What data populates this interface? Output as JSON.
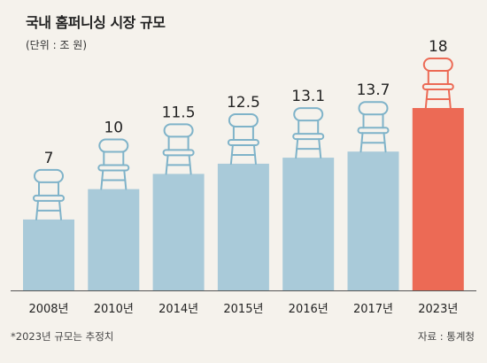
{
  "header": {
    "title": "국내 홈퍼니싱 시장 규모",
    "unit": "(단위 : 조 원)"
  },
  "footer": {
    "note": "*2023년 규모는 추정치",
    "source": "자료 : 통계청"
  },
  "colors": {
    "background": "#f5f2ec",
    "bar": "#a9cad9",
    "highlight_bar": "#ec6a55",
    "chair_outline": "#7fb3c9",
    "highlight_chair_outline": "#ec6a55",
    "axis": "#555555"
  },
  "chart_data": {
    "type": "bar",
    "title": "국내 홈퍼니싱 시장 규모",
    "ylabel": "",
    "xlabel": "",
    "unit": "조 원",
    "categories": [
      "2008년",
      "2010년",
      "2014년",
      "2015년",
      "2016년",
      "2017년",
      "2023년"
    ],
    "values": [
      7,
      10,
      11.5,
      12.5,
      13.1,
      13.7,
      18
    ],
    "value_labels": [
      "7",
      "10",
      "11.5",
      "12.5",
      "13.1",
      "13.7",
      "18"
    ],
    "highlight_index": 6,
    "ylim": [
      0,
      18
    ],
    "grid": false,
    "legend": "none",
    "decoration_icon": "chair-icon"
  }
}
